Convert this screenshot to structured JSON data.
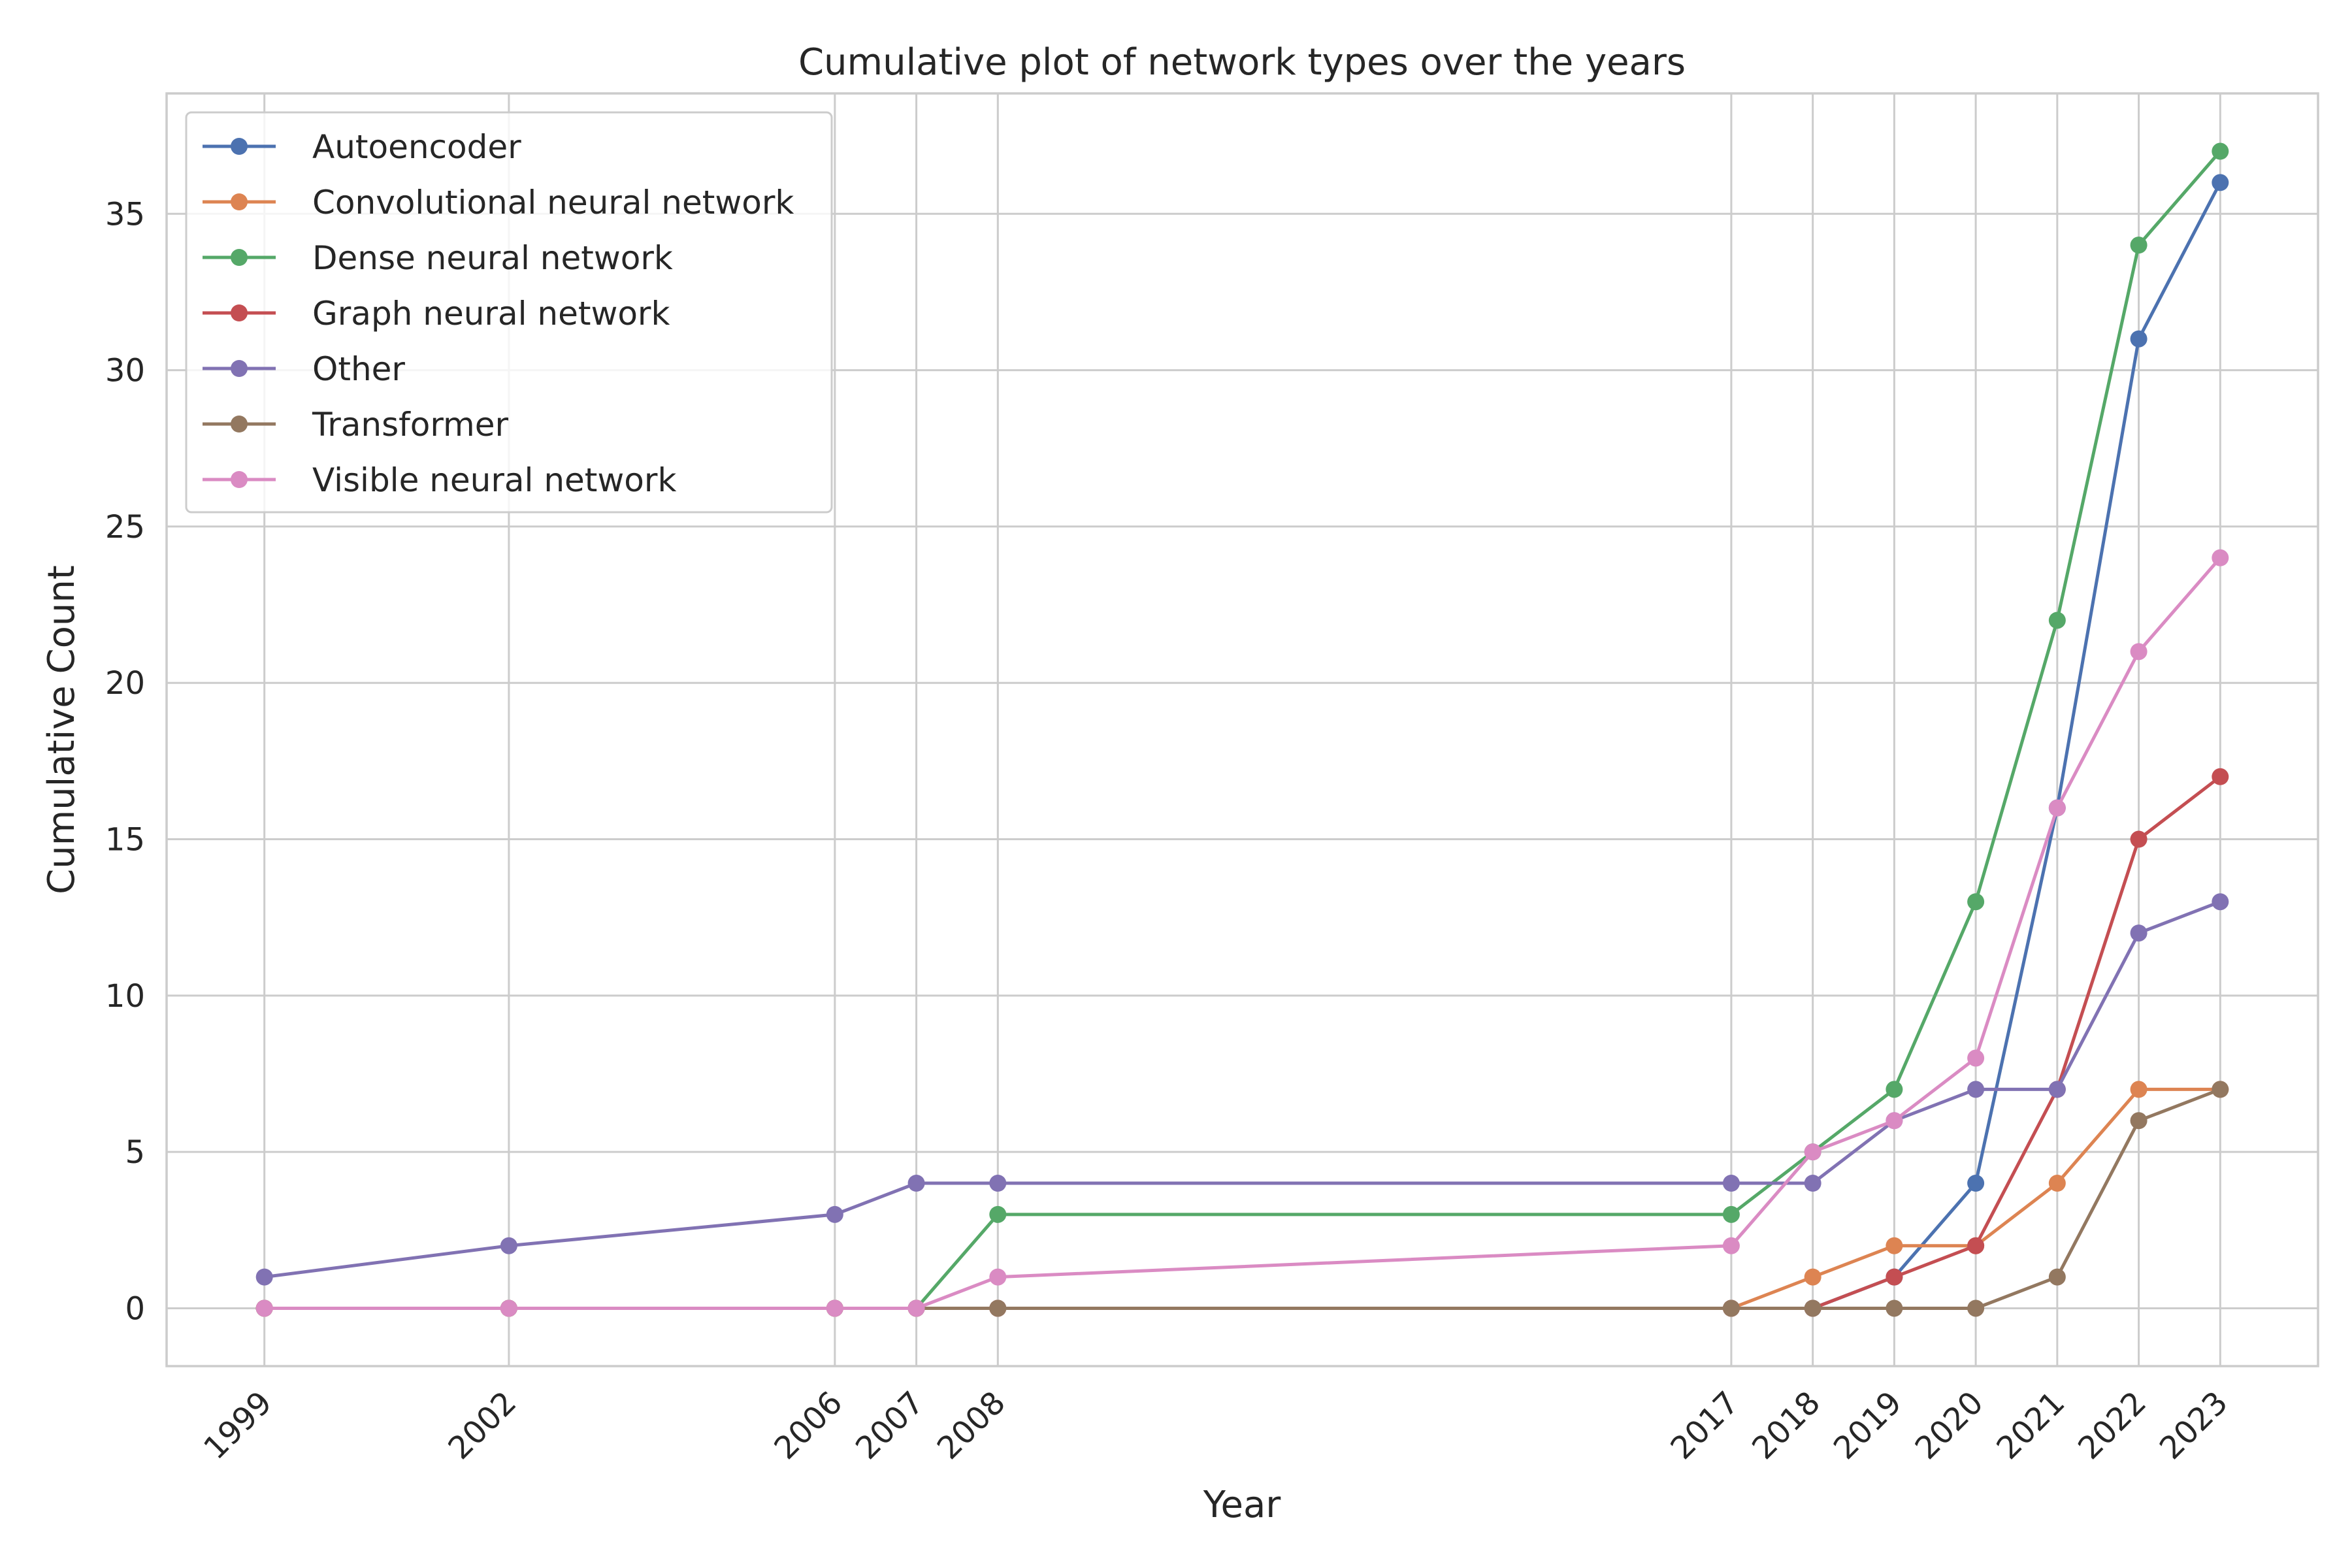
{
  "chart_data": {
    "type": "line",
    "title": "Cumulative plot of network types over the years",
    "xlabel": "Year",
    "ylabel": "Cumulative Count",
    "x": [
      1999,
      2002,
      2006,
      2007,
      2008,
      2017,
      2018,
      2019,
      2020,
      2021,
      2022,
      2023
    ],
    "x_tick_labels": [
      "1999",
      "2002",
      "2006",
      "2007",
      "2008",
      "2017",
      "2018",
      "2019",
      "2020",
      "2021",
      "2022",
      "2023"
    ],
    "y_ticks": [
      0,
      5,
      10,
      15,
      20,
      25,
      30,
      35
    ],
    "y_tick_labels": [
      "0",
      "5",
      "10",
      "15",
      "20",
      "25",
      "30",
      "35"
    ],
    "xlim": [
      1997.8,
      2024.2
    ],
    "ylim": [
      -1.85,
      38.85
    ],
    "grid": true,
    "legend_position": "top-left",
    "series": [
      {
        "name": "Autoencoder",
        "color": "#4c72b0",
        "values": [
          0,
          0,
          0,
          0,
          0,
          0,
          0,
          1,
          4,
          16,
          31,
          36
        ]
      },
      {
        "name": "Convolutional neural network",
        "color": "#dd8452",
        "values": [
          0,
          0,
          0,
          0,
          0,
          0,
          1,
          2,
          2,
          4,
          7,
          7
        ]
      },
      {
        "name": "Dense neural network",
        "color": "#55a868",
        "values": [
          0,
          0,
          0,
          0,
          3,
          3,
          5,
          7,
          13,
          22,
          34,
          37
        ]
      },
      {
        "name": "Graph neural network",
        "color": "#c44e52",
        "values": [
          0,
          0,
          0,
          0,
          0,
          0,
          0,
          1,
          2,
          7,
          15,
          17
        ]
      },
      {
        "name": "Other",
        "color": "#8172b3",
        "values": [
          1,
          2,
          3,
          4,
          4,
          4,
          4,
          6,
          7,
          7,
          12,
          13
        ]
      },
      {
        "name": "Transformer",
        "color": "#937860",
        "values": [
          0,
          0,
          0,
          0,
          0,
          0,
          0,
          0,
          0,
          1,
          6,
          7
        ]
      },
      {
        "name": "Visible neural network",
        "color": "#da8bc3",
        "values": [
          0,
          0,
          0,
          0,
          1,
          2,
          5,
          6,
          8,
          16,
          21,
          24
        ]
      }
    ]
  }
}
